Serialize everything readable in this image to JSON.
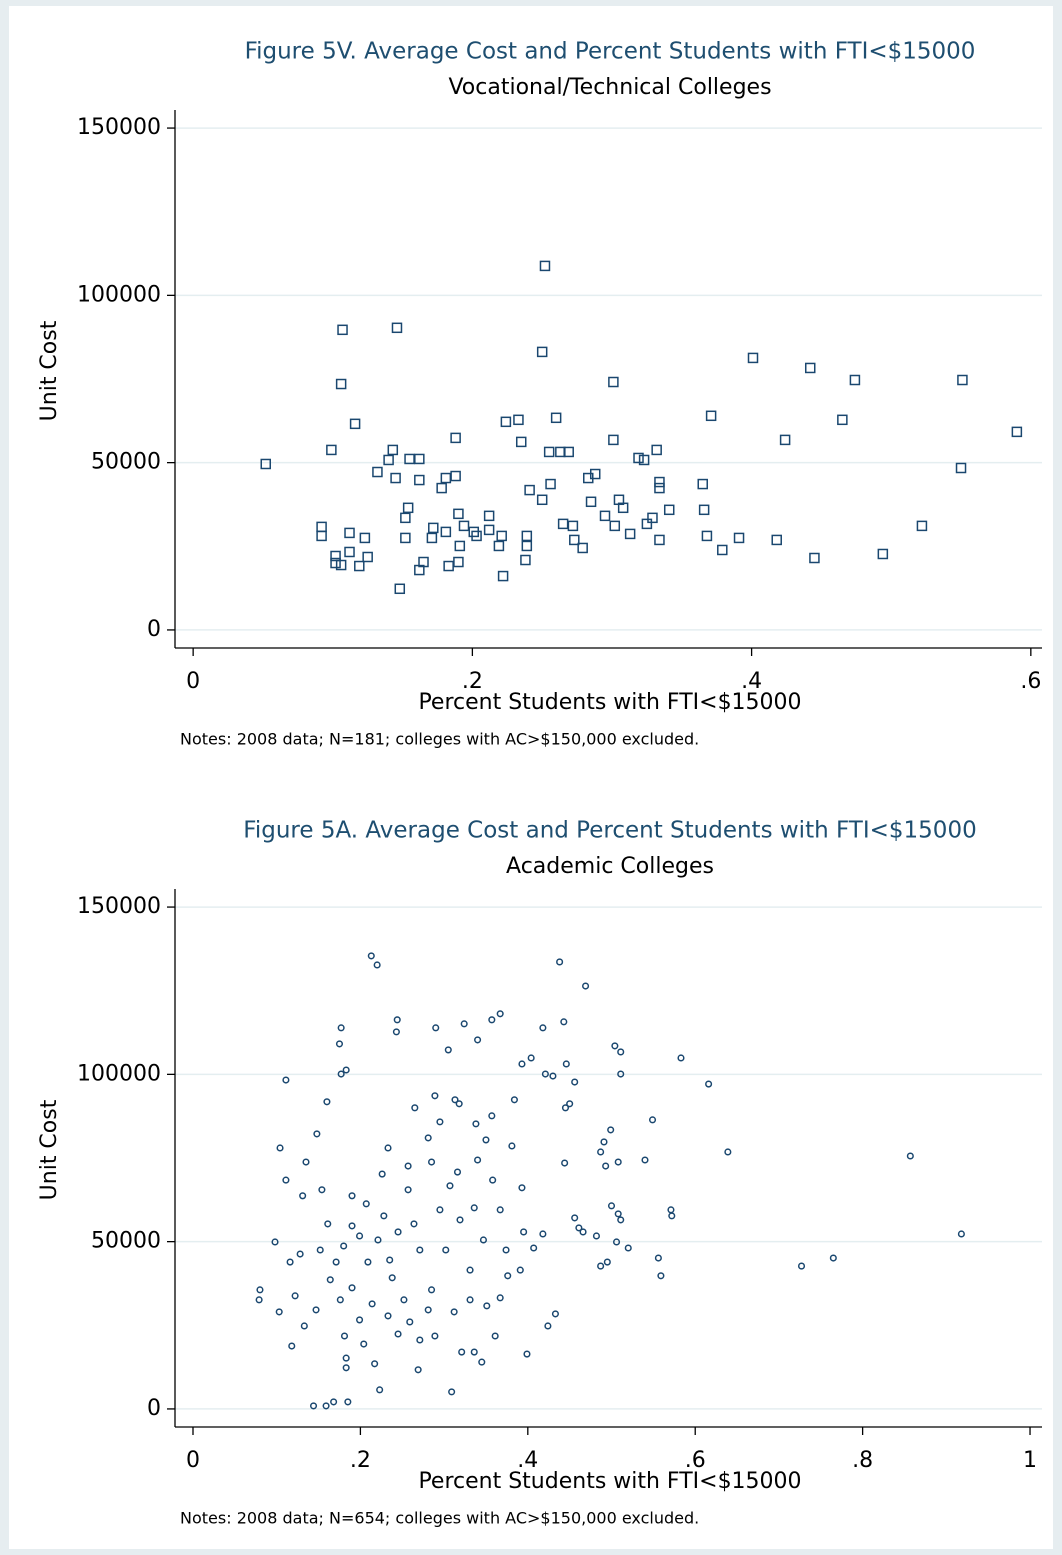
{
  "chart_data": [
    {
      "type": "scatter",
      "title": "Figure 5V. Average Cost and Percent Students with FTI<$15000",
      "subtitle": "Vocational/Technical Colleges",
      "x_label": "Percent Students with FTI<$15000",
      "y_label": "Unit Cost",
      "notes": "Notes: 2008 data; N=181; colleges with AC>$150,000 excluded.",
      "marker": "square",
      "color": "#1a476f",
      "grid": true,
      "xlim": [
        -0.013,
        0.608
      ],
      "ylim": [
        -5400,
        155400
      ],
      "xticks": [
        0,
        {
          "value": 0.2,
          "label": ".2"
        },
        {
          "value": 0.4,
          "label": ".4"
        },
        {
          "value": 0.6,
          "label": ".6"
        }
      ],
      "yticks": [
        0,
        50000,
        100000,
        150000
      ],
      "x": [
        0.052,
        0.092,
        0.092,
        0.099,
        0.107,
        0.106,
        0.102,
        0.102,
        0.106,
        0.112,
        0.112,
        0.116,
        0.119,
        0.123,
        0.125,
        0.132,
        0.14,
        0.143,
        0.145,
        0.146,
        0.148,
        0.152,
        0.154,
        0.152,
        0.155,
        0.162,
        0.162,
        0.162,
        0.165,
        0.171,
        0.172,
        0.178,
        0.181,
        0.181,
        0.183,
        0.188,
        0.188,
        0.19,
        0.191,
        0.19,
        0.194,
        0.201,
        0.203,
        0.212,
        0.212,
        0.219,
        0.221,
        0.222,
        0.224,
        0.233,
        0.235,
        0.238,
        0.239,
        0.239,
        0.241,
        0.25,
        0.252,
        0.25,
        0.255,
        0.256,
        0.26,
        0.263,
        0.265,
        0.269,
        0.272,
        0.273,
        0.279,
        0.283,
        0.288,
        0.285,
        0.295,
        0.301,
        0.301,
        0.302,
        0.305,
        0.308,
        0.313,
        0.319,
        0.323,
        0.325,
        0.329,
        0.332,
        0.334,
        0.334,
        0.334,
        0.341,
        0.365,
        0.366,
        0.368,
        0.371,
        0.379,
        0.391,
        0.401,
        0.418,
        0.424,
        0.442,
        0.445,
        0.465,
        0.474,
        0.494,
        0.522,
        0.55,
        0.551,
        0.59
      ],
      "values": [
        49600,
        30800,
        28100,
        53800,
        89700,
        73500,
        22100,
        20000,
        19400,
        29000,
        23300,
        61600,
        19100,
        27500,
        21800,
        47200,
        50800,
        53800,
        45400,
        90300,
        12300,
        33500,
        36500,
        27500,
        51100,
        51100,
        44800,
        17900,
        20300,
        27500,
        30500,
        42400,
        45400,
        29300,
        19100,
        57400,
        46000,
        34700,
        25100,
        20300,
        31100,
        29300,
        28100,
        34100,
        29900,
        25100,
        28100,
        16100,
        62200,
        62800,
        56200,
        20900,
        28100,
        25100,
        41800,
        38900,
        108800,
        83100,
        53200,
        43600,
        63400,
        53200,
        31700,
        53200,
        31100,
        26900,
        24500,
        45400,
        46600,
        38300,
        34100,
        74100,
        56800,
        31100,
        38900,
        36500,
        28700,
        51400,
        50800,
        31700,
        33500,
        53800,
        44200,
        42400,
        26900,
        35900,
        43600,
        35900,
        28100,
        64000,
        23900,
        27500,
        81300,
        26900,
        56800,
        78300,
        21500,
        62800,
        74700,
        22700,
        31100,
        48400,
        74700,
        59200
      ]
    },
    {
      "type": "scatter",
      "title": "Figure 5A. Average Cost and Percent Students with FTI<$15000",
      "subtitle": "Academic Colleges",
      "x_label": "Percent Students with FTI<$15000",
      "y_label": "Unit Cost",
      "notes": "Notes: 2008 data; N=654; colleges with AC>$150,000 excluded.",
      "marker": "circle",
      "color": "#1a476f",
      "grid": true,
      "xlim": [
        -0.0215,
        1.0143
      ],
      "ylim": [
        -5400,
        155400
      ],
      "xticks": [
        0,
        {
          "value": 0.2,
          "label": ".2"
        },
        {
          "value": 0.4,
          "label": ".4"
        },
        {
          "value": 0.6,
          "label": ".6"
        },
        {
          "value": 0.8,
          "label": ".8"
        },
        1
      ],
      "yticks": [
        0,
        50000,
        100000,
        150000
      ],
      "x": [
        0.08,
        0.079,
        0.098,
        0.104,
        0.111,
        0.111,
        0.135,
        0.148,
        0.16,
        0.177,
        0.175,
        0.177,
        0.183,
        0.213,
        0.22,
        0.244,
        0.243,
        0.29,
        0.324,
        0.305,
        0.34,
        0.357,
        0.367,
        0.438,
        0.469,
        0.443,
        0.418,
        0.404,
        0.393,
        0.446,
        0.421,
        0.43,
        0.456,
        0.45,
        0.445,
        0.384,
        0.504,
        0.511,
        0.511,
        0.583,
        0.616,
        0.549,
        0.639,
        0.54,
        0.499,
        0.491,
        0.487,
        0.493,
        0.508,
        0.5,
        0.508,
        0.511,
        0.444,
        0.571,
        0.572,
        0.556,
        0.559,
        0.506,
        0.52,
        0.487,
        0.495,
        0.482,
        0.456,
        0.461,
        0.466,
        0.727,
        0.765,
        0.857,
        0.918,
        0.418,
        0.433,
        0.424,
        0.399,
        0.309,
        0.223,
        0.217,
        0.183,
        0.183,
        0.144,
        0.159,
        0.168,
        0.185,
        0.269,
        0.345,
        0.336,
        0.321,
        0.361,
        0.289,
        0.181,
        0.118,
        0.103,
        0.122,
        0.131,
        0.116,
        0.128,
        0.154,
        0.19,
        0.207,
        0.226,
        0.257,
        0.285,
        0.281,
        0.265,
        0.289,
        0.313,
        0.318,
        0.233,
        0.295,
        0.338,
        0.357,
        0.35,
        0.381,
        0.393,
        0.34,
        0.316,
        0.358,
        0.407,
        0.395,
        0.391,
        0.376,
        0.367,
        0.351,
        0.152,
        0.171,
        0.19,
        0.209,
        0.221,
        0.238,
        0.252,
        0.271,
        0.285,
        0.302,
        0.319,
        0.331,
        0.347,
        0.295,
        0.264,
        0.245,
        0.199,
        0.176,
        0.164,
        0.147,
        0.133,
        0.214,
        0.233,
        0.259,
        0.281,
        0.312,
        0.331,
        0.235,
        0.199,
        0.18,
        0.228,
        0.257,
        0.307,
        0.336,
        0.367,
        0.374,
        0.19,
        0.161,
        0.204,
        0.245,
        0.271
      ],
      "values": [
        35600,
        32600,
        49900,
        78000,
        98300,
        68400,
        73800,
        82200,
        91800,
        113900,
        109100,
        100100,
        101300,
        135400,
        132700,
        116300,
        112700,
        113900,
        115100,
        107300,
        110300,
        116300,
        118100,
        133600,
        126400,
        115700,
        113900,
        104900,
        103100,
        103100,
        100100,
        99500,
        97700,
        91200,
        90000,
        92400,
        108500,
        106700,
        100100,
        104900,
        97100,
        86400,
        76800,
        74400,
        83400,
        79800,
        76800,
        72600,
        73800,
        60700,
        58300,
        56500,
        73500,
        59500,
        57700,
        45100,
        39800,
        49900,
        48100,
        42700,
        43900,
        51700,
        57100,
        54100,
        52900,
        42700,
        45100,
        75600,
        52300,
        52300,
        28400,
        24800,
        16400,
        5100,
        5700,
        13500,
        12300,
        15200,
        900,
        900,
        2100,
        2100,
        11700,
        14000,
        17000,
        17000,
        21800,
        21800,
        21800,
        18800,
        29000,
        33800,
        63700,
        43900,
        46300,
        65500,
        63700,
        61300,
        70200,
        72600,
        73800,
        81000,
        90000,
        93600,
        92400,
        91200,
        78000,
        85800,
        85200,
        87600,
        80400,
        78600,
        66100,
        74400,
        70800,
        68400,
        48100,
        52900,
        41500,
        39800,
        33200,
        30800,
        47500,
        43900,
        36200,
        43900,
        50500,
        39200,
        32600,
        47500,
        35600,
        47500,
        56500,
        41500,
        50500,
        59500,
        55300,
        52900,
        26600,
        32600,
        38600,
        29600,
        24800,
        31400,
        27800,
        26000,
        29600,
        29000,
        32600,
        44500,
        51700,
        48700,
        57700,
        65500,
        66700,
        60100,
        59500,
        47500,
        54700,
        55300,
        19400,
        22400,
        20600
      ]
    }
  ]
}
